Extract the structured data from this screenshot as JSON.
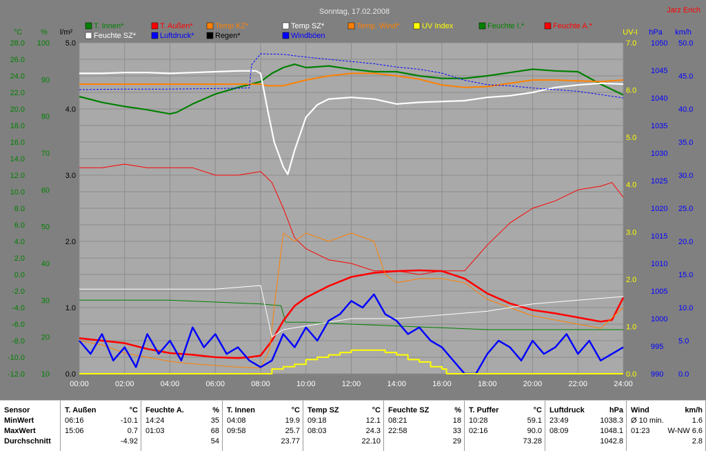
{
  "title": "Sonntag, 17.02.2008",
  "author": "Jarz Erich",
  "legend": [
    {
      "name": "T. Innen*",
      "color": "#008000"
    },
    {
      "name": "T. Außen*",
      "color": "#ff0000"
    },
    {
      "name": "Temp KZ*",
      "color": "#ff8000"
    },
    {
      "name": "Temp SZ*",
      "color": "#ffffff"
    },
    {
      "name": "Temp. Wind*",
      "color": "#ff8000"
    },
    {
      "name": "UV Index",
      "color": "#ffff00"
    },
    {
      "name": "Feuchte I.*",
      "color": "#008000"
    },
    {
      "name": "Feuchte A.*",
      "color": "#ff0000"
    },
    {
      "name": "Feuchte SZ*",
      "color": "#ffffff"
    },
    {
      "name": "Luftdruck*",
      "color": "#0000ff"
    },
    {
      "name": "Regen*",
      "color": "#000000"
    },
    {
      "name": "Windböen",
      "color": "#0000ff"
    }
  ],
  "axes": {
    "temp_unit": "°C",
    "hum_unit": "%",
    "rain_unit": "l/m²",
    "uv_unit": "UV-I",
    "press_unit": "hPa",
    "wind_unit": "km/h",
    "temp_ticks": [
      "28.0",
      "26.0",
      "24.0",
      "22.0",
      "20.0",
      "18.0",
      "16.0",
      "14.0",
      "12.0",
      "10.0",
      "8.0",
      "6.0",
      "4.0",
      "2.0",
      "0.0",
      "-2.0",
      "-4.0",
      "-6.0",
      "-8.0",
      "-10.0",
      "-12.0"
    ],
    "hum_ticks": [
      "100",
      "90",
      "80",
      "70",
      "60",
      "50",
      "40",
      "30",
      "20",
      "10"
    ],
    "rain_ticks": [
      "5.0",
      "4.0",
      "3.0",
      "2.0",
      "1.0",
      "0.0"
    ],
    "uv_ticks": [
      "7.0",
      "6.0",
      "5.0",
      "4.0",
      "3.0",
      "2.0",
      "1.0",
      "0.0"
    ],
    "press_ticks": [
      "1050",
      "1045",
      "1040",
      "1035",
      "1030",
      "1025",
      "1020",
      "1015",
      "1010",
      "1005",
      "1000",
      "995",
      "990"
    ],
    "wind_ticks": [
      "50.0",
      "45.0",
      "40.0",
      "35.0",
      "30.0",
      "25.0",
      "20.0",
      "15.0",
      "10.0",
      "5.0",
      "0.0"
    ],
    "x_ticks": [
      "00:00",
      "02:00",
      "04:00",
      "06:00",
      "08:00",
      "10:00",
      "12:00",
      "14:00",
      "16:00",
      "18:00",
      "20:00",
      "22:00",
      "24:00"
    ]
  },
  "chart_data": {
    "type": "line",
    "title": "Sonntag, 17.02.2008",
    "xlim": [
      0,
      24
    ],
    "ylim_temp": [
      -12,
      28
    ],
    "ylim_hum": [
      10,
      100
    ],
    "ylim_press": [
      990,
      1050
    ],
    "ylim_wind": [
      0,
      50
    ],
    "ylim_uv": [
      0,
      7
    ],
    "series": [
      {
        "name": "T. Innen*",
        "axis": "temp",
        "color": "#008000",
        "x": [
          0,
          1,
          2,
          3,
          4,
          4.3,
          5,
          6,
          7,
          8,
          8.5,
          9,
          9.5,
          10,
          11,
          12,
          13,
          14,
          15,
          16,
          17,
          18,
          19,
          20,
          21,
          22,
          23,
          24
        ],
        "y": [
          21.5,
          20.8,
          20.3,
          19.9,
          19.4,
          19.6,
          20.6,
          21.8,
          22.6,
          23.3,
          24.3,
          25.0,
          25.4,
          25.0,
          25.2,
          24.8,
          24.5,
          24.5,
          24.0,
          23.7,
          23.7,
          24.0,
          24.4,
          24.8,
          24.6,
          24.5,
          23.0,
          21.7
        ]
      },
      {
        "name": "Feuchte I.*",
        "axis": "hum",
        "color": "#008000",
        "x": [
          0,
          2,
          4,
          6,
          8,
          8.9,
          9.1,
          10,
          12,
          14,
          16,
          18,
          20,
          22,
          24
        ],
        "y": [
          30,
          30,
          30,
          29.5,
          29,
          28.5,
          24,
          24,
          23.5,
          23,
          22.5,
          22,
          22,
          22,
          22
        ]
      },
      {
        "name": "T. Außen*",
        "axis": "temp",
        "color": "#ff0000",
        "x": [
          0,
          1,
          2,
          3,
          4,
          5,
          6,
          7,
          7.5,
          8,
          8.5,
          9,
          9.5,
          10,
          11,
          12,
          13,
          14,
          15,
          16,
          17,
          18,
          19,
          20,
          21,
          22,
          23,
          23.5,
          24
        ],
        "y": [
          -7.7,
          -8.0,
          -8.3,
          -9.0,
          -9.5,
          -9.7,
          -10.0,
          -10.1,
          -10.0,
          -9.8,
          -8.0,
          -5.6,
          -3.8,
          -2.8,
          -1.4,
          -0.3,
          0.2,
          0.4,
          0.5,
          0.4,
          -0.5,
          -2.3,
          -3.5,
          -4.3,
          -4.7,
          -5.2,
          -5.7,
          -5.5,
          -2.8
        ]
      },
      {
        "name": "Feuchte A.*",
        "axis": "hum",
        "color": "#ff0000",
        "x": [
          0,
          1,
          2,
          3,
          4,
          5,
          6,
          7,
          8,
          8.5,
          9,
          9.5,
          10,
          11,
          12,
          13,
          14,
          15,
          16,
          17,
          18,
          19,
          20,
          21,
          22,
          23,
          23.5,
          24
        ],
        "y": [
          66,
          66,
          67,
          66,
          66,
          66,
          64,
          64,
          65,
          62,
          55,
          47,
          44,
          41,
          40,
          38,
          38,
          37,
          38,
          38,
          45,
          51,
          55,
          57,
          60,
          61,
          62,
          58
        ]
      },
      {
        "name": "Temp KZ*",
        "axis": "temp",
        "color": "#ff8000",
        "x": [
          0,
          1,
          2,
          3,
          4,
          5,
          6,
          7,
          8,
          8.3,
          8.6,
          9,
          10,
          11,
          12,
          13,
          14,
          15,
          16,
          17,
          18,
          19,
          20,
          21,
          22,
          23,
          24
        ],
        "y": [
          23.0,
          23.0,
          23.0,
          23.0,
          23.0,
          23.0,
          23.0,
          23.0,
          23.0,
          22.8,
          22.8,
          22.8,
          23.5,
          24.0,
          24.3,
          24.3,
          24.0,
          23.6,
          22.9,
          22.6,
          22.7,
          23.1,
          23.5,
          23.5,
          23.4,
          23.3,
          23.5
        ]
      },
      {
        "name": "Temp. Wind*",
        "axis": "temp",
        "color": "#ff8000",
        "x": [
          0,
          1,
          2,
          3,
          4,
          5,
          6,
          7,
          8,
          8.4,
          8.6,
          9,
          9.5,
          10,
          11,
          12,
          13,
          13.5,
          14,
          15,
          16,
          17,
          18,
          19,
          20,
          21,
          22,
          23,
          24
        ],
        "y": [
          -8,
          -8.5,
          -9.5,
          -10,
          -10.5,
          -10.8,
          -11.0,
          -11.2,
          -11.3,
          -9,
          -4,
          5,
          4,
          5,
          4,
          5,
          4,
          0,
          -1,
          -0.5,
          -0.5,
          -1,
          -3,
          -4,
          -5,
          -5.5,
          -6,
          -6.5,
          -4
        ]
      },
      {
        "name": "Temp SZ*",
        "axis": "temp",
        "color": "#ffffff",
        "x": [
          0,
          1,
          2,
          3,
          4,
          5,
          6,
          7,
          7.8,
          8.0,
          8.3,
          8.6,
          9.0,
          9.2,
          9.5,
          10,
          10.5,
          11,
          12,
          13,
          14,
          15,
          16,
          17,
          18,
          19,
          20,
          21,
          22,
          23,
          24
        ],
        "y": [
          24.3,
          24.3,
          24.4,
          24.4,
          24.3,
          24.4,
          24.5,
          24.6,
          24.6,
          24.3,
          20.0,
          16.0,
          13.0,
          12.1,
          15.0,
          19.0,
          20.5,
          21.2,
          21.4,
          21.2,
          20.6,
          20.8,
          20.9,
          21.0,
          21.4,
          21.6,
          22.0,
          22.6,
          22.9,
          23.1,
          23.0
        ]
      },
      {
        "name": "Feuchte SZ*",
        "axis": "hum",
        "color": "#ffffff",
        "x": [
          0,
          2,
          4,
          6,
          8,
          8.5,
          9,
          10,
          12,
          14,
          16,
          18,
          20,
          22,
          24
        ],
        "y": [
          33,
          33,
          33,
          33,
          34,
          20,
          22,
          23,
          25,
          25,
          26,
          27,
          29,
          30,
          31
        ]
      },
      {
        "name": "Luftdruck*",
        "axis": "press",
        "color": "#0000ff",
        "x": [
          0,
          2,
          4,
          6,
          7.5,
          7.6,
          8,
          9,
          10,
          11,
          12,
          13,
          14,
          15,
          16,
          17,
          18,
          19,
          20,
          21,
          22,
          23,
          24
        ],
        "y": [
          1041.5,
          1041.6,
          1041.6,
          1041.7,
          1041.8,
          1046.0,
          1048.0,
          1047.9,
          1047.4,
          1047.0,
          1046.6,
          1046.2,
          1045.6,
          1045.2,
          1044.5,
          1043.2,
          1042.4,
          1042.2,
          1041.8,
          1041.5,
          1041.2,
          1040.6,
          1040.0
        ]
      },
      {
        "name": "Windböen",
        "axis": "wind",
        "color": "#0000ff",
        "x": [
          0,
          0.5,
          1,
          1.5,
          2,
          2.5,
          3,
          3.5,
          4,
          4.5,
          5,
          5.5,
          6,
          6.5,
          7,
          7.5,
          8,
          8.5,
          9,
          9.5,
          10,
          10.5,
          11,
          11.5,
          12,
          12.5,
          13,
          13.5,
          14,
          14.5,
          15,
          15.5,
          16,
          16.5,
          17,
          17.5,
          18,
          18.5,
          19,
          19.5,
          20,
          20.5,
          21,
          21.5,
          22,
          22.5,
          23,
          23.5,
          24
        ],
        "y": [
          5,
          3,
          6,
          2,
          4,
          1,
          6,
          3,
          5,
          2,
          7,
          4,
          6,
          3,
          4,
          2,
          1,
          2,
          6,
          4,
          7,
          5,
          8,
          9,
          11,
          10,
          12,
          9,
          8,
          6,
          7,
          5,
          4,
          2,
          0,
          0,
          3,
          5,
          4,
          2,
          5,
          3,
          4,
          6,
          3,
          5,
          2,
          3,
          4
        ]
      },
      {
        "name": "UV Index",
        "axis": "uv",
        "color": "#ffff00",
        "x": [
          0,
          8,
          8.5,
          9,
          9.5,
          10,
          10.5,
          11,
          11.5,
          12,
          12.5,
          13,
          13.5,
          14,
          14.5,
          15,
          15.5,
          16,
          16.2,
          17,
          24
        ],
        "y": [
          0,
          0,
          0.1,
          0.15,
          0.2,
          0.3,
          0.35,
          0.4,
          0.45,
          0.5,
          0.5,
          0.5,
          0.45,
          0.4,
          0.3,
          0.25,
          0.15,
          0.1,
          0,
          0,
          0
        ]
      }
    ]
  },
  "stats": {
    "row_labels": [
      "Sensor",
      "MinWert",
      "MaxWert",
      "Durchschnitt"
    ],
    "columns": [
      {
        "name": "T. Außen",
        "unit": "°C",
        "rows": [
          [
            "06:16",
            "-10.1"
          ],
          [
            "15:06",
            "0.7"
          ],
          [
            "",
            "-4.92"
          ]
        ]
      },
      {
        "name": "Feuchte A.",
        "unit": "%",
        "rows": [
          [
            "14:24",
            "35"
          ],
          [
            "01:03",
            "68"
          ],
          [
            "",
            "54"
          ]
        ]
      },
      {
        "name": "T. Innen",
        "unit": "°C",
        "rows": [
          [
            "04:08",
            "19.9"
          ],
          [
            "09:58",
            "25.7"
          ],
          [
            "",
            "23.77"
          ]
        ]
      },
      {
        "name": "Temp SZ",
        "unit": "°C",
        "rows": [
          [
            "09:18",
            "12.1"
          ],
          [
            "08:03",
            "24.3"
          ],
          [
            "",
            "22.10"
          ]
        ]
      },
      {
        "name": "Feuchte SZ",
        "unit": "%",
        "rows": [
          [
            "08:21",
            "18"
          ],
          [
            "22:58",
            "33"
          ],
          [
            "",
            "29"
          ]
        ]
      },
      {
        "name": "T. Puffer",
        "unit": "°C",
        "rows": [
          [
            "10:28",
            "59.1"
          ],
          [
            "02:16",
            "90.0"
          ],
          [
            "",
            "73.28"
          ]
        ]
      },
      {
        "name": "Luftdruck",
        "unit": "hPa",
        "rows": [
          [
            "23:49",
            "1038.3"
          ],
          [
            "08:09",
            "1048.1"
          ],
          [
            "",
            "1042.8"
          ]
        ]
      },
      {
        "name": "Wind",
        "unit": "km/h",
        "rows": [
          [
            "Ø 10 min.",
            "1.6"
          ],
          [
            "01:23",
            "W-NW 6.6"
          ],
          [
            "",
            "2.8"
          ]
        ]
      }
    ]
  }
}
